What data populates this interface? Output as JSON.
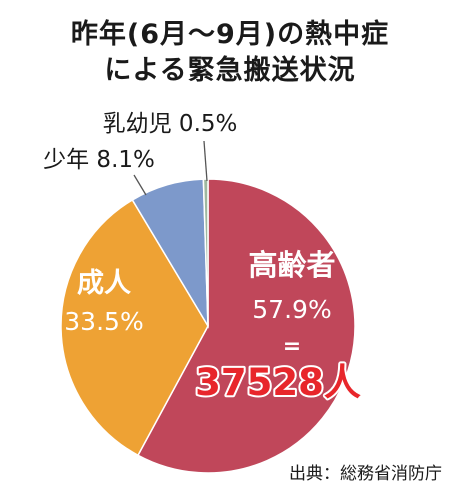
{
  "chart_data": {
    "type": "pie",
    "title": [
      "昨年(6月〜9月)の熱中症",
      "による緊急搬送状況"
    ],
    "slices": [
      {
        "label": "高齢者",
        "value": 57.9,
        "value_label": "57.9%",
        "color": "#c0475a",
        "extra": [
          "=",
          "37528人"
        ],
        "extra_color": "#e8262b"
      },
      {
        "label": "成人",
        "value": 33.5,
        "value_label": "33.5%",
        "color": "#eea234"
      },
      {
        "label": "少年",
        "value": 8.1,
        "value_label": "8.1%",
        "color": "#7d99cb"
      },
      {
        "label": "乳幼児",
        "value": 0.5,
        "value_label": "0.5%",
        "color": "#9fb8a0"
      }
    ],
    "legend": "none",
    "source": "出典：総務省消防庁"
  }
}
